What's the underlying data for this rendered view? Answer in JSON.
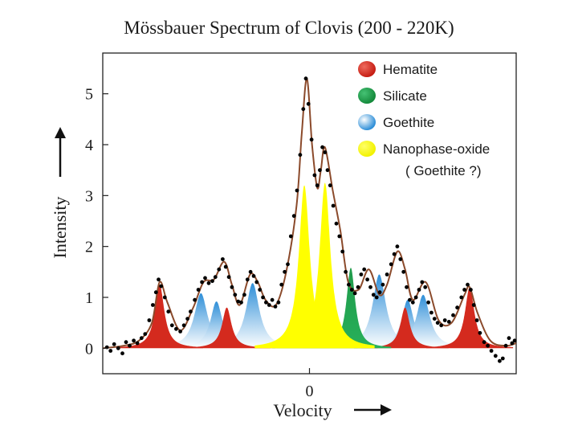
{
  "chart_data": {
    "type": "area",
    "title": "Mössbauer Spectrum of Clovis (200 - 220K)",
    "xlabel": "Velocity",
    "ylabel": "Intensity",
    "x_ticks": [
      "0"
    ],
    "y_ticks": [
      "0",
      "1",
      "2",
      "3",
      "4",
      "5"
    ],
    "xlim": [
      -4.0,
      4.0
    ],
    "ylim": [
      -0.5,
      5.8
    ],
    "grid": false,
    "legend_position": "top-right",
    "legend_note": "( Goethite ?)",
    "series": [
      {
        "name": "Hematite",
        "color": "#d42a1e",
        "peaks": [
          {
            "x": -2.9,
            "y": 1.25,
            "w": 0.14
          },
          {
            "x": -1.6,
            "y": 0.8,
            "w": 0.14
          },
          {
            "x": -0.35,
            "y": 0.38,
            "w": 0.12
          },
          {
            "x": 0.6,
            "y": 0.38,
            "w": 0.12
          },
          {
            "x": 1.85,
            "y": 0.8,
            "w": 0.14
          },
          {
            "x": 3.1,
            "y": 1.2,
            "w": 0.14
          }
        ]
      },
      {
        "name": "Silicate",
        "color": "#1f9a4a",
        "peaks": [
          {
            "x": -0.15,
            "y": 1.15,
            "w": 0.08
          },
          {
            "x": 0.0,
            "y": 1.55,
            "w": 0.12
          },
          {
            "x": 0.45,
            "y": 1.2,
            "w": 0.08
          },
          {
            "x": 0.8,
            "y": 1.58,
            "w": 0.13
          }
        ]
      },
      {
        "name": "Goethite",
        "color": "#3a9ee0",
        "peaks": [
          {
            "x": -2.1,
            "y": 1.08,
            "w": 0.2
          },
          {
            "x": -1.8,
            "y": 0.92,
            "w": 0.18
          },
          {
            "x": -1.1,
            "y": 1.28,
            "w": 0.2
          },
          {
            "x": 1.35,
            "y": 1.45,
            "w": 0.2
          },
          {
            "x": 1.9,
            "y": 0.95,
            "w": 0.18
          },
          {
            "x": 2.2,
            "y": 1.05,
            "w": 0.2
          }
        ]
      },
      {
        "name": "Nanophase-oxide",
        "color": "#ffff00",
        "peaks": [
          {
            "x": -0.1,
            "y": 3.2,
            "w": 0.16
          },
          {
            "x": 0.3,
            "y": 3.25,
            "w": 0.16
          }
        ]
      }
    ],
    "fit_line": {
      "color": "#8b4a2b",
      "x": [
        -4.0,
        -3.6,
        -3.3,
        -3.05,
        -2.9,
        -2.75,
        -2.5,
        -2.25,
        -2.05,
        -1.85,
        -1.65,
        -1.5,
        -1.35,
        -1.15,
        -1.0,
        -0.85,
        -0.65,
        -0.45,
        -0.25,
        -0.15,
        -0.05,
        0.05,
        0.15,
        0.22,
        0.3,
        0.45,
        0.6,
        0.75,
        0.95,
        1.15,
        1.35,
        1.5,
        1.7,
        1.85,
        2.0,
        2.25,
        2.5,
        2.75,
        3.0,
        3.1,
        3.25,
        3.5,
        3.8,
        4.0
      ],
      "y": [
        0.0,
        0.05,
        0.15,
        0.5,
        1.3,
        0.9,
        0.35,
        0.8,
        1.3,
        1.35,
        1.7,
        1.25,
        0.85,
        1.45,
        1.3,
        0.95,
        0.85,
        1.5,
        2.8,
        4.2,
        5.3,
        4.0,
        3.15,
        3.5,
        3.95,
        3.1,
        2.3,
        1.3,
        1.15,
        1.55,
        1.05,
        1.25,
        1.9,
        1.55,
        0.95,
        1.3,
        0.55,
        0.5,
        1.05,
        1.2,
        0.7,
        0.15,
        0.05,
        0.1
      ]
    },
    "data_points": [
      [
        -3.92,
        0.02
      ],
      [
        -3.85,
        -0.05
      ],
      [
        -3.78,
        0.08
      ],
      [
        -3.7,
        0.0
      ],
      [
        -3.62,
        -0.1
      ],
      [
        -3.55,
        0.12
      ],
      [
        -3.48,
        0.05
      ],
      [
        -3.4,
        0.15
      ],
      [
        -3.33,
        0.1
      ],
      [
        -3.25,
        0.2
      ],
      [
        -3.18,
        0.28
      ],
      [
        -3.1,
        0.55
      ],
      [
        -3.03,
        0.85
      ],
      [
        -2.97,
        1.1
      ],
      [
        -2.92,
        1.35
      ],
      [
        -2.87,
        1.22
      ],
      [
        -2.8,
        1.0
      ],
      [
        -2.73,
        0.72
      ],
      [
        -2.66,
        0.45
      ],
      [
        -2.58,
        0.38
      ],
      [
        -2.5,
        0.33
      ],
      [
        -2.43,
        0.45
      ],
      [
        -2.36,
        0.58
      ],
      [
        -2.3,
        0.72
      ],
      [
        -2.22,
        0.95
      ],
      [
        -2.15,
        1.15
      ],
      [
        -2.08,
        1.3
      ],
      [
        -2.02,
        1.38
      ],
      [
        -1.95,
        1.28
      ],
      [
        -1.88,
        1.32
      ],
      [
        -1.82,
        1.4
      ],
      [
        -1.75,
        1.55
      ],
      [
        -1.68,
        1.75
      ],
      [
        -1.62,
        1.6
      ],
      [
        -1.56,
        1.4
      ],
      [
        -1.5,
        1.2
      ],
      [
        -1.44,
        1.05
      ],
      [
        -1.38,
        0.92
      ],
      [
        -1.32,
        0.9
      ],
      [
        -1.26,
        1.05
      ],
      [
        -1.2,
        1.35
      ],
      [
        -1.14,
        1.5
      ],
      [
        -1.08,
        1.42
      ],
      [
        -1.02,
        1.3
      ],
      [
        -0.96,
        1.15
      ],
      [
        -0.9,
        1.0
      ],
      [
        -0.84,
        0.9
      ],
      [
        -0.78,
        0.85
      ],
      [
        -0.72,
        0.95
      ],
      [
        -0.66,
        0.82
      ],
      [
        -0.6,
        0.9
      ],
      [
        -0.54,
        1.25
      ],
      [
        -0.48,
        1.5
      ],
      [
        -0.42,
        1.65
      ],
      [
        -0.36,
        2.2
      ],
      [
        -0.3,
        2.6
      ],
      [
        -0.24,
        3.1
      ],
      [
        -0.18,
        3.8
      ],
      [
        -0.12,
        4.7
      ],
      [
        -0.07,
        5.3
      ],
      [
        -0.02,
        4.8
      ],
      [
        0.04,
        4.1
      ],
      [
        0.1,
        3.4
      ],
      [
        0.15,
        3.2
      ],
      [
        0.2,
        3.5
      ],
      [
        0.25,
        3.95
      ],
      [
        0.3,
        3.85
      ],
      [
        0.35,
        3.5
      ],
      [
        0.4,
        3.2
      ],
      [
        0.46,
        2.8
      ],
      [
        0.52,
        2.45
      ],
      [
        0.58,
        2.2
      ],
      [
        0.64,
        1.9
      ],
      [
        0.7,
        1.5
      ],
      [
        0.76,
        1.25
      ],
      [
        0.82,
        1.15
      ],
      [
        0.88,
        1.08
      ],
      [
        0.94,
        1.2
      ],
      [
        1.0,
        1.45
      ],
      [
        1.06,
        1.55
      ],
      [
        1.12,
        1.35
      ],
      [
        1.18,
        1.2
      ],
      [
        1.24,
        1.05
      ],
      [
        1.3,
        1.0
      ],
      [
        1.36,
        1.1
      ],
      [
        1.42,
        1.25
      ],
      [
        1.5,
        1.45
      ],
      [
        1.58,
        1.65
      ],
      [
        1.64,
        1.85
      ],
      [
        1.7,
        2.0
      ],
      [
        1.76,
        1.75
      ],
      [
        1.82,
        1.5
      ],
      [
        1.88,
        1.2
      ],
      [
        1.94,
        0.95
      ],
      [
        2.0,
        0.9
      ],
      [
        2.06,
        1.0
      ],
      [
        2.12,
        1.15
      ],
      [
        2.18,
        1.3
      ],
      [
        2.24,
        1.2
      ],
      [
        2.3,
        0.9
      ],
      [
        2.36,
        0.7
      ],
      [
        2.42,
        0.58
      ],
      [
        2.48,
        0.5
      ],
      [
        2.55,
        0.45
      ],
      [
        2.62,
        0.55
      ],
      [
        2.7,
        0.52
      ],
      [
        2.78,
        0.65
      ],
      [
        2.86,
        0.8
      ],
      [
        2.94,
        1.0
      ],
      [
        3.0,
        1.15
      ],
      [
        3.06,
        1.25
      ],
      [
        3.12,
        1.15
      ],
      [
        3.18,
        0.85
      ],
      [
        3.24,
        0.55
      ],
      [
        3.3,
        0.3
      ],
      [
        3.38,
        0.12
      ],
      [
        3.45,
        0.05
      ],
      [
        3.52,
        -0.05
      ],
      [
        3.6,
        -0.15
      ],
      [
        3.68,
        -0.25
      ],
      [
        3.74,
        -0.2
      ],
      [
        3.8,
        0.05
      ],
      [
        3.86,
        0.2
      ],
      [
        3.92,
        0.1
      ],
      [
        3.97,
        0.15
      ]
    ]
  }
}
